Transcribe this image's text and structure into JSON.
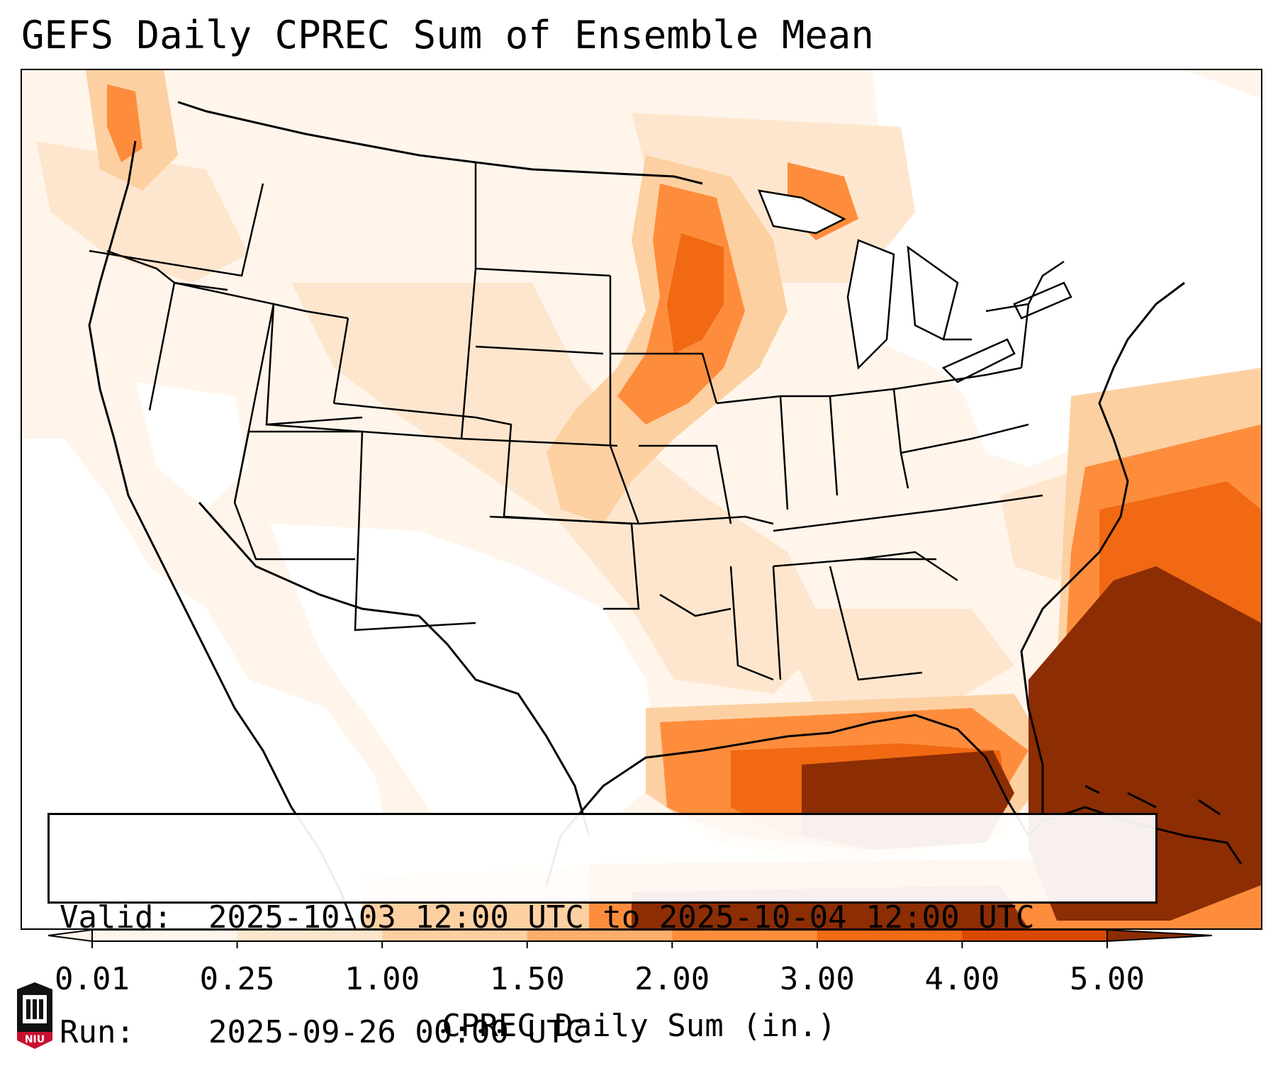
{
  "title": "GEFS Daily CPREC Sum of Ensemble Mean",
  "info": {
    "valid_label": "Valid:",
    "valid_value": "2025-10-03 12:00 UTC to 2025-10-04 12:00 UTC",
    "run_label": "Run:",
    "run_value": "2025-09-26 00:00 UTC"
  },
  "colorbar": {
    "label": "CPREC Daily Sum (in.)",
    "ticks": [
      "0.01",
      "0.25",
      "1.00",
      "1.50",
      "2.00",
      "3.00",
      "4.00",
      "5.00"
    ],
    "colors": [
      "#fff5eb",
      "#fee6ce",
      "#fdd0a2",
      "#fdae6b",
      "#fd8d3c",
      "#f16913",
      "#d94801",
      "#8c2d04"
    ],
    "extend": "both"
  },
  "logo": {
    "text": "NIU",
    "color": "#c8102e"
  }
}
